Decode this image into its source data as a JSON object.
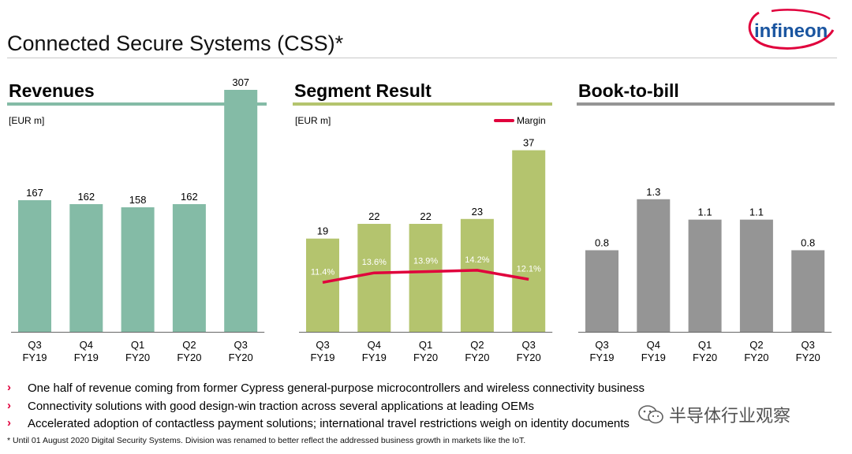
{
  "page": {
    "title": "Connected Secure Systems (CSS)*",
    "logo_text": "infineon",
    "footnote": "* Until 01 August 2020 Digital Security Systems. Division was renamed to better reflect the addressed business growth in markets like the IoT.",
    "watermark": "半导体行业观察",
    "bullets": [
      "One half of revenue coming from former Cypress general-purpose microcontrollers and wireless connectivity business",
      "Connectivity solutions with good design-win traction across several applications at leading OEMs",
      "Accelerated adoption of contactless payment solutions; international travel restrictions weigh on identity documents"
    ]
  },
  "colors": {
    "revenues": "#84bba6",
    "segment": "#b4c46e",
    "book_to_bill": "#959595",
    "margin": "#e0003c",
    "logo": "#1a55a0",
    "logo_swoosh": "#e0003c"
  },
  "chart_data": [
    {
      "type": "bar",
      "title": "Revenues",
      "ylabel": "[EUR m]",
      "categories": [
        [
          "Q3",
          "FY19"
        ],
        [
          "Q4",
          "FY19"
        ],
        [
          "Q1",
          "FY20"
        ],
        [
          "Q2",
          "FY20"
        ],
        [
          "Q3",
          "FY20"
        ]
      ],
      "values": [
        167,
        162,
        158,
        162,
        307
      ],
      "value_labels": [
        "167",
        "162",
        "158",
        "162",
        "307"
      ],
      "ylim": [
        0,
        330
      ]
    },
    {
      "type": "bar",
      "title": "Segment Result",
      "ylabel": "[EUR m]",
      "categories": [
        [
          "Q3",
          "FY19"
        ],
        [
          "Q4",
          "FY19"
        ],
        [
          "Q1",
          "FY20"
        ],
        [
          "Q2",
          "FY20"
        ],
        [
          "Q3",
          "FY20"
        ]
      ],
      "values": [
        19,
        22,
        22,
        23,
        37
      ],
      "value_labels": [
        "19",
        "22",
        "22",
        "23",
        "37"
      ],
      "ylim": [
        0,
        53
      ],
      "series": [
        {
          "name": "Margin",
          "type": "line",
          "values": [
            11.4,
            13.6,
            13.9,
            14.2,
            12.1
          ],
          "labels": [
            "11.4%",
            "13.6%",
            "13.9%",
            "14.2%",
            "12.1%"
          ],
          "ylim": [
            0,
            60
          ]
        }
      ],
      "legend": "top-right"
    },
    {
      "type": "bar",
      "title": "Book-to-bill",
      "categories": [
        [
          "Q3",
          "FY19"
        ],
        [
          "Q4",
          "FY19"
        ],
        [
          "Q1",
          "FY20"
        ],
        [
          "Q2",
          "FY20"
        ],
        [
          "Q3",
          "FY20"
        ]
      ],
      "values": [
        0.8,
        1.3,
        1.1,
        1.1,
        0.8
      ],
      "value_labels": [
        "0.8",
        "1.3",
        "1.1",
        "1.1",
        "0.8"
      ],
      "ylim": [
        0,
        2.55
      ]
    }
  ]
}
